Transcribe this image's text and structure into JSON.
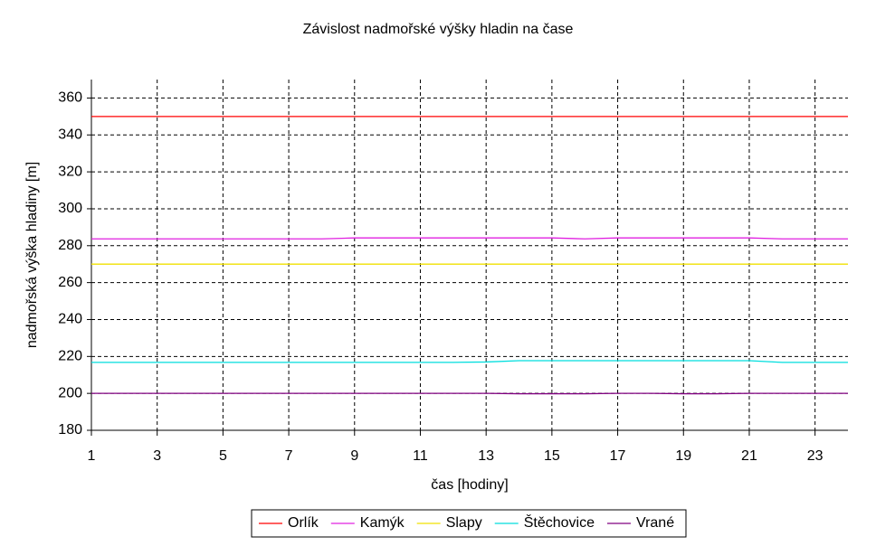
{
  "chart_data": {
    "type": "line",
    "title": "Závislost nadmořské výšky hladin na čase",
    "x_label": "čas [hodiny]",
    "y_label": "nadmořská výška hladiny [m]",
    "x": [
      1,
      2,
      3,
      4,
      5,
      6,
      7,
      8,
      9,
      10,
      11,
      12,
      13,
      14,
      15,
      16,
      17,
      18,
      19,
      20,
      21,
      22,
      23,
      24
    ],
    "series": [
      {
        "name": "Orlík",
        "color": "#ff0000",
        "values": [
          350,
          350,
          350,
          350,
          350,
          350,
          350,
          350,
          350,
          350,
          350,
          350,
          350,
          350,
          350,
          350,
          350,
          350,
          350,
          350,
          350,
          350,
          350,
          350
        ]
      },
      {
        "name": "Kamýk",
        "color": "#e020e0",
        "values": [
          283.7,
          283.7,
          283.7,
          283.7,
          283.7,
          283.7,
          283.7,
          283.7,
          284.2,
          284.2,
          284.2,
          284.2,
          284.2,
          284.2,
          284.2,
          283.7,
          284.2,
          284.2,
          284.2,
          284.2,
          284.2,
          283.7,
          283.7,
          283.7
        ]
      },
      {
        "name": "Slapy",
        "color": "#f0e000",
        "values": [
          270,
          270,
          270,
          270,
          270,
          270,
          270,
          270,
          270,
          270,
          270,
          270,
          270,
          270,
          270,
          270,
          270,
          270,
          270,
          270,
          270,
          270,
          270,
          270
        ]
      },
      {
        "name": "Štěchovice",
        "color": "#00dede",
        "values": [
          216.8,
          216.8,
          216.8,
          216.8,
          216.8,
          216.8,
          216.8,
          216.8,
          216.8,
          216.8,
          216.8,
          216.8,
          217.0,
          217.7,
          217.7,
          217.7,
          217.7,
          217.7,
          217.7,
          217.7,
          217.7,
          216.8,
          216.8,
          216.8
        ]
      },
      {
        "name": "Vrané",
        "color": "#800080",
        "values": [
          200,
          200,
          200,
          200,
          200,
          200,
          200,
          200,
          200,
          200,
          200,
          200,
          200,
          199.8,
          199.8,
          199.8,
          200,
          200,
          199.8,
          199.8,
          200,
          200,
          200,
          200
        ]
      }
    ],
    "xlim": [
      1,
      24
    ],
    "xticks": [
      1,
      3,
      5,
      7,
      9,
      11,
      13,
      15,
      17,
      19,
      21,
      23
    ],
    "ylim": [
      180,
      370
    ],
    "yticks": [
      180,
      200,
      220,
      240,
      260,
      280,
      300,
      320,
      340,
      360
    ],
    "grid": true,
    "legend_position": "bottom"
  }
}
